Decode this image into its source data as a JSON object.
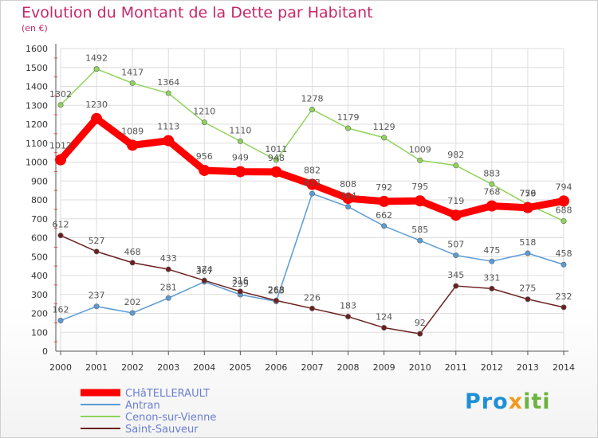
{
  "header": {
    "title": "Evolution du Montant de la Dette par Habitant",
    "subtitle": "(en €)"
  },
  "logo": {
    "part1": "Pro",
    "part2": "x",
    "part3": "iti"
  },
  "chart_data": {
    "type": "line",
    "title": "Evolution du Montant de la Dette par Habitant",
    "subtitle": "(en €)",
    "xlabel": "",
    "ylabel": "",
    "x": [
      "2000",
      "2001",
      "2002",
      "2003",
      "2004",
      "2005",
      "2006",
      "2007",
      "2008",
      "2009",
      "2010",
      "2011",
      "2012",
      "2013",
      "2014"
    ],
    "ylim": [
      0,
      1600
    ],
    "yticks": [
      0,
      100,
      200,
      300,
      400,
      500,
      600,
      700,
      800,
      900,
      1000,
      1100,
      1200,
      1300,
      1400,
      1500,
      1600
    ],
    "grid": true,
    "legend_position": "bottom-left",
    "series": [
      {
        "name": "CHâTELLERAULT",
        "color": "#ff0000",
        "bold": true,
        "values": [
          1012,
          1230,
          1089,
          1113,
          956,
          949,
          948,
          882,
          808,
          792,
          795,
          719,
          768,
          759,
          794
        ]
      },
      {
        "name": "Antran",
        "color": "#5b9bd5",
        "bold": false,
        "values": [
          162,
          237,
          202,
          281,
          367,
          299,
          263,
          833,
          764,
          662,
          585,
          507,
          475,
          518,
          458
        ]
      },
      {
        "name": "Cenon-sur-Vienne",
        "color": "#8fd45a",
        "bold": false,
        "values": [
          1302,
          1492,
          1417,
          1364,
          1210,
          1110,
          1011,
          1278,
          1179,
          1129,
          1009,
          982,
          883,
          776,
          688
        ]
      },
      {
        "name": "Saint-Sauveur",
        "color": "#6b1f1f",
        "bold": false,
        "values": [
          612,
          527,
          468,
          433,
          374,
          316,
          268,
          226,
          183,
          124,
          92,
          345,
          331,
          275,
          232
        ]
      }
    ]
  }
}
